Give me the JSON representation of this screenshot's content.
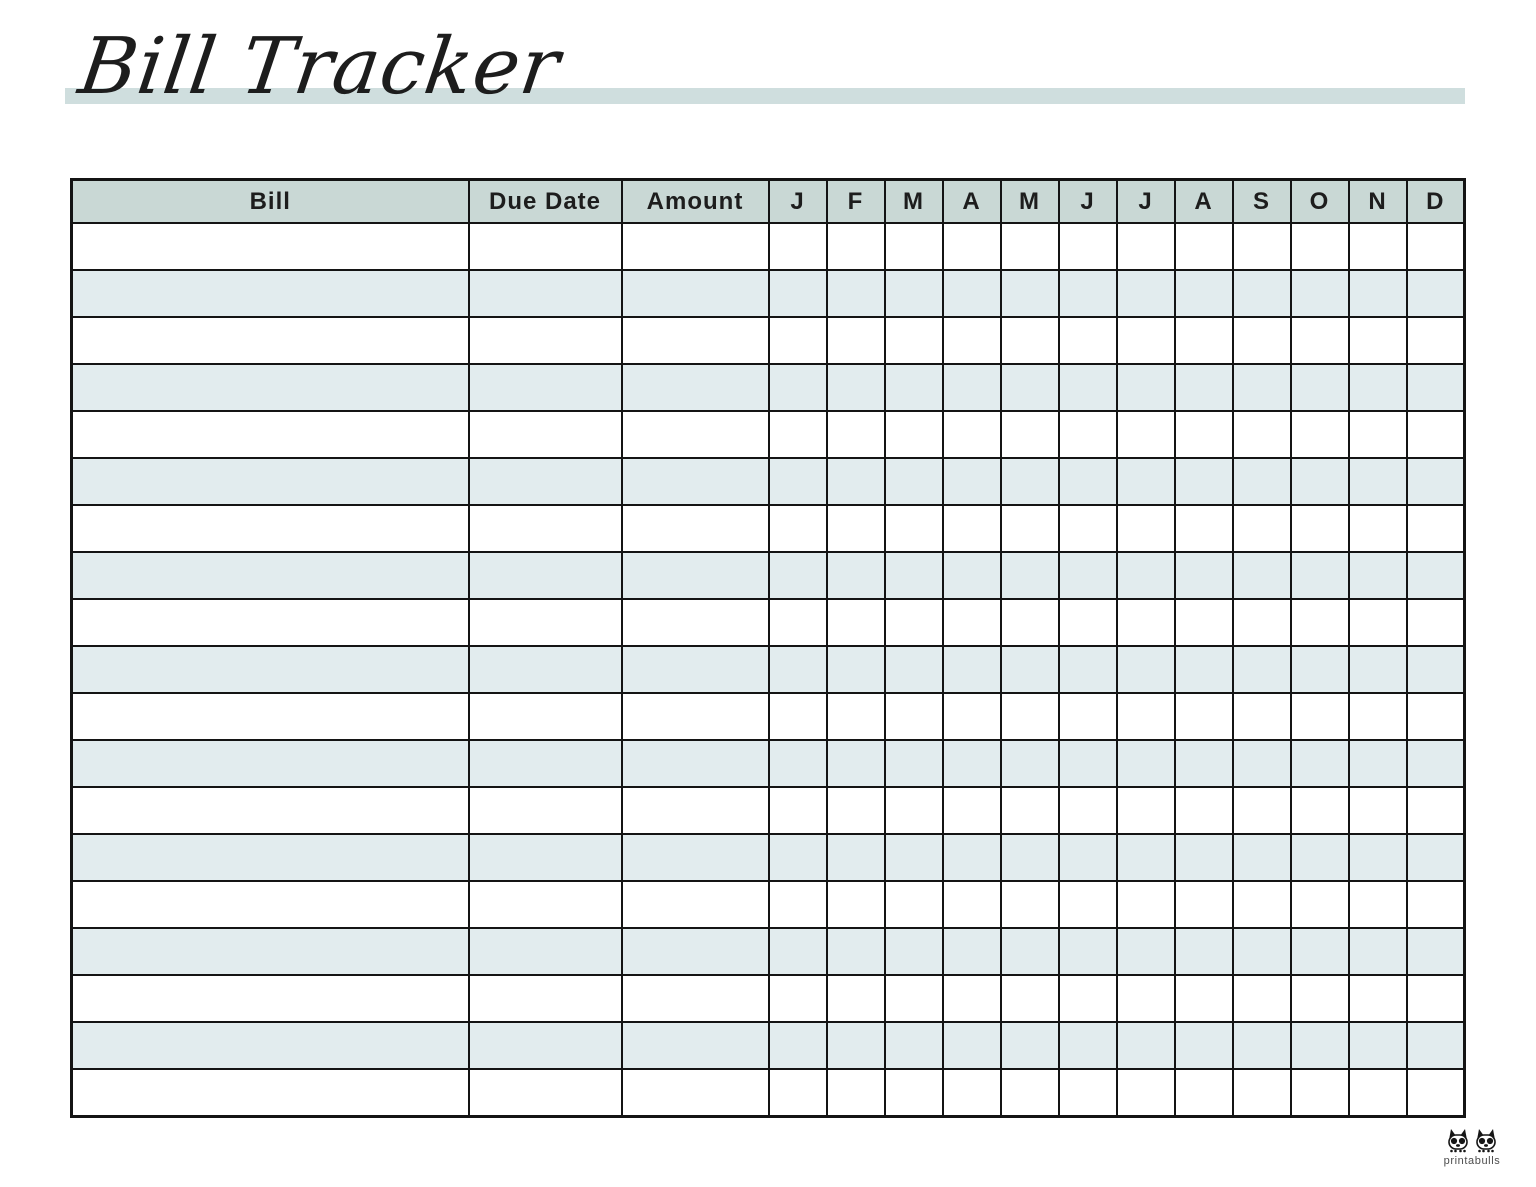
{
  "page": {
    "title": "Bill Tracker"
  },
  "table": {
    "columns": [
      {
        "label": "Bill"
      },
      {
        "label": "Due Date"
      },
      {
        "label": "Amount"
      }
    ],
    "month_columns": [
      "J",
      "F",
      "M",
      "A",
      "M",
      "J",
      "J",
      "A",
      "S",
      "O",
      "N",
      "D"
    ],
    "num_rows": 19,
    "rows_are_blank": true
  },
  "colors": {
    "title_bar": "#cfdede",
    "header_bg": "#c9d8d5",
    "stripe_bg": "#e2ecee",
    "border": "#141414"
  },
  "footer": {
    "brand": "printabulls",
    "logo": "two-bulldogs-icon"
  }
}
